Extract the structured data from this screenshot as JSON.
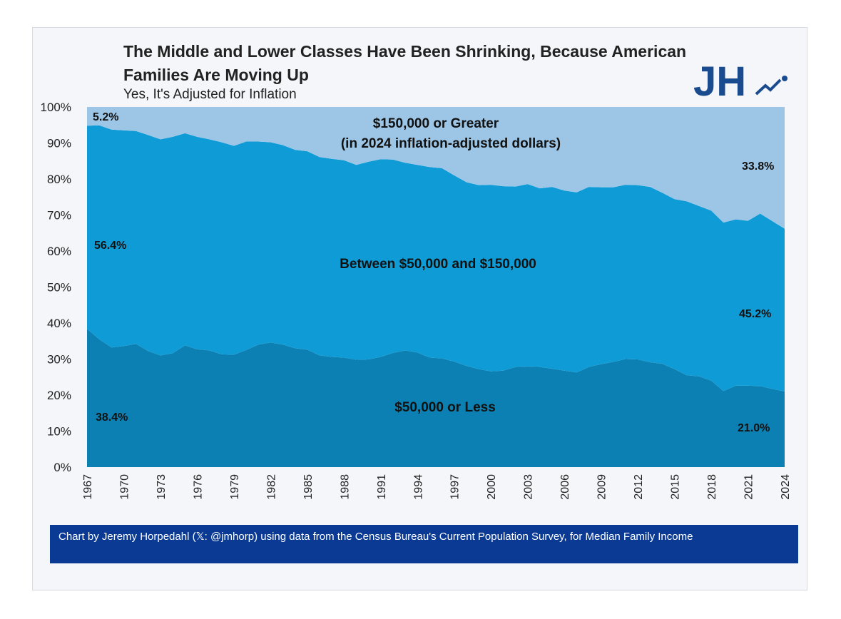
{
  "header": {
    "title": "The Middle and Lower Classes Have Been Shrinking, Because American Families Are Moving Up",
    "subtitle": "Yes, It's Adjusted for Inflation",
    "logo_text": "JH"
  },
  "footer": {
    "credit": "Chart by Jeremy Horpedahl (𝕏: @jmhorp) using data from the Census Bureau's Current Population Survey, for Median Family Income"
  },
  "colors": {
    "low": "#0c80b2",
    "middle": "#0f9cd6",
    "high": "#9dc6e6",
    "logo": "#1a4b8f",
    "footer": "#0a3a94"
  },
  "chart_data": {
    "type": "area",
    "stacked": true,
    "xlabel": "",
    "ylabel": "",
    "ylim": [
      0,
      100
    ],
    "yticks": [
      "0%",
      "10%",
      "20%",
      "30%",
      "40%",
      "50%",
      "60%",
      "70%",
      "80%",
      "90%",
      "100%"
    ],
    "xticks": [
      "1967",
      "1970",
      "1973",
      "1976",
      "1979",
      "1982",
      "1985",
      "1988",
      "1991",
      "1994",
      "1997",
      "2000",
      "2003",
      "2006",
      "2009",
      "2012",
      "2015",
      "2018",
      "2021",
      "2024"
    ],
    "x": [
      1967,
      1968,
      1969,
      1970,
      1971,
      1972,
      1973,
      1974,
      1975,
      1976,
      1977,
      1978,
      1979,
      1980,
      1981,
      1982,
      1983,
      1984,
      1985,
      1986,
      1987,
      1988,
      1989,
      1990,
      1991,
      1992,
      1993,
      1994,
      1995,
      1996,
      1997,
      1998,
      1999,
      2000,
      2001,
      2002,
      2003,
      2004,
      2005,
      2006,
      2007,
      2008,
      2009,
      2010,
      2011,
      2012,
      2013,
      2014,
      2015,
      2016,
      2017,
      2018,
      2019,
      2020,
      2021,
      2022,
      2023,
      2024
    ],
    "series": [
      {
        "name": "$50,000 or Less",
        "values": [
          38.4,
          35.5,
          33.2,
          33.6,
          34.2,
          32.2,
          31.0,
          31.6,
          33.8,
          32.7,
          32.4,
          31.3,
          31.2,
          32.5,
          34.0,
          34.6,
          34.0,
          33.0,
          32.6,
          31.0,
          30.6,
          30.4,
          29.8,
          29.9,
          30.6,
          31.7,
          32.4,
          31.8,
          30.4,
          30.2,
          29.3,
          28.1,
          27.2,
          26.6,
          26.8,
          27.8,
          27.9,
          27.8,
          27.3,
          26.8,
          26.3,
          27.8,
          28.6,
          29.2,
          30.0,
          29.9,
          29.1,
          28.7,
          27.2,
          25.5,
          25.2,
          24.0,
          21.1,
          22.6,
          22.6,
          22.5,
          21.7,
          21.0
        ]
      },
      {
        "name": "Between $50,000 and $150,000",
        "values": [
          56.4,
          59.4,
          60.5,
          59.9,
          59.1,
          60.0,
          60.0,
          60.1,
          58.9,
          59.0,
          58.6,
          58.9,
          58.0,
          57.9,
          56.4,
          55.6,
          55.4,
          55.1,
          55.1,
          55.1,
          55.0,
          54.8,
          54.1,
          54.9,
          54.9,
          53.7,
          52.1,
          52.1,
          52.9,
          52.8,
          51.7,
          51.0,
          51.1,
          51.8,
          51.2,
          50.1,
          50.7,
          49.6,
          50.5,
          50.0,
          50.0,
          50.0,
          49.1,
          48.5,
          48.4,
          48.4,
          48.7,
          47.5,
          47.2,
          48.3,
          47.3,
          47.2,
          46.8,
          46.2,
          45.8,
          47.9,
          46.6,
          45.2
        ]
      },
      {
        "name": "$150,000 or Greater",
        "values": [
          5.2,
          5.1,
          6.3,
          6.5,
          6.7,
          7.8,
          9.0,
          8.3,
          7.3,
          8.3,
          9.0,
          9.8,
          10.8,
          9.6,
          9.6,
          9.8,
          10.6,
          11.9,
          12.3,
          13.9,
          14.4,
          14.8,
          16.1,
          15.2,
          14.5,
          14.6,
          15.5,
          16.1,
          16.7,
          17.0,
          19.0,
          20.9,
          21.7,
          21.6,
          22.0,
          22.1,
          21.4,
          22.6,
          22.2,
          23.2,
          23.7,
          22.2,
          22.3,
          22.3,
          21.6,
          21.7,
          22.2,
          23.8,
          25.6,
          26.2,
          27.5,
          28.8,
          32.1,
          31.2,
          31.6,
          29.6,
          31.7,
          33.8
        ]
      }
    ],
    "band_labels": {
      "high_line1": "$150,000 or Greater",
      "high_line2": "(in 2024 inflation-adjusted dollars)",
      "middle": "Between $50,000 and $150,000",
      "low": "$50,000 or Less"
    },
    "value_labels": {
      "high_start": "5.2%",
      "high_end": "33.8%",
      "middle_start": "56.4%",
      "middle_end": "45.2%",
      "low_start": "38.4%",
      "low_end": "21.0%"
    }
  }
}
